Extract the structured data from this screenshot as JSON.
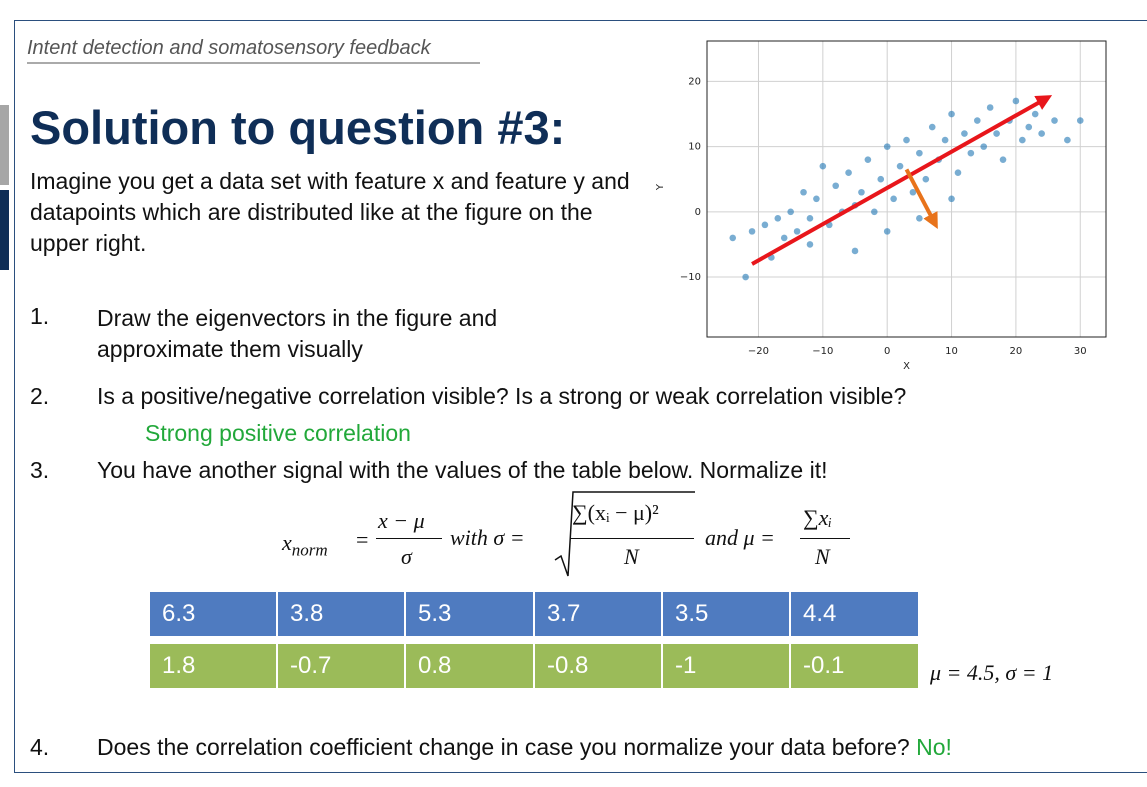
{
  "header": {
    "topic": "Intent detection and somatosensory feedback"
  },
  "title": "Solution to question #3:",
  "intro": "Imagine you get a data set with feature x and feature y and datapoints which are distributed like at the figure on the upper right.",
  "questions": [
    {
      "number": "1.",
      "text": "Draw the eigenvectors in the figure and approximate them visually"
    },
    {
      "number": "2.",
      "text": "Is a positive/negative correlation visible? Is a strong or weak correlation visible?",
      "answer": "Strong positive correlation"
    },
    {
      "number": "3.",
      "text": "You have another signal with the values of the table below. Normalize it!"
    },
    {
      "number": "4.",
      "text": "Does the correlation coefficient change in case you normalize your data before?",
      "answer": "No!"
    }
  ],
  "formula": {
    "lhs": "x",
    "lhs_sub": "norm",
    "eq": "=",
    "numerator": "x − μ",
    "denominator": "σ",
    "with": "with σ =",
    "sigma_numerator": "∑(xᵢ − μ)²",
    "sigma_denominator": "N",
    "and": "and μ =",
    "mu_numerator": "∑xᵢ",
    "mu_denominator": "N"
  },
  "table": {
    "rows": [
      [
        "6.3",
        "3.8",
        "5.3",
        "3.7",
        "3.5",
        "4.4"
      ],
      [
        "1.8",
        "-0.7",
        "0.8",
        "-0.8",
        "-1",
        "-0.1"
      ]
    ],
    "row_colors": [
      "#4f7bc0",
      "#9bbb59"
    ],
    "result": "μ = 4.5, σ = 1"
  },
  "chart_data": {
    "type": "scatter",
    "xlabel": "X",
    "ylabel": "Y",
    "color": "#1f77b4",
    "grid": true,
    "xlim": [
      -28,
      34
    ],
    "ylim": [
      -19.2,
      26.2
    ],
    "xticks": [
      {
        "value": -20,
        "label": "−20"
      },
      {
        "value": -10,
        "label": "−10"
      },
      0,
      10,
      20,
      30
    ],
    "yticks": [
      {
        "value": -10,
        "label": "−10"
      },
      0,
      10,
      20
    ],
    "x": [
      -24,
      -22,
      -21,
      -19,
      -18,
      -17,
      -16,
      -15,
      -14,
      -13,
      -12,
      -11,
      -10,
      -9,
      -8,
      -7,
      -6,
      -5,
      -4,
      -3,
      -2,
      -1,
      0,
      1,
      2,
      3,
      4,
      5,
      6,
      7,
      8,
      9,
      10,
      11,
      12,
      13,
      14,
      15,
      16,
      17,
      18,
      19,
      20,
      21,
      22,
      23,
      24,
      26,
      28,
      30,
      -12,
      -5,
      0,
      5,
      10
    ],
    "values": [
      -4,
      -10,
      -3,
      -2,
      -7,
      -1,
      -4,
      0,
      -3,
      3,
      -1,
      2,
      7,
      -2,
      4,
      0,
      6,
      1,
      3,
      8,
      0,
      5,
      10,
      2,
      7,
      11,
      3,
      9,
      5,
      13,
      8,
      11,
      15,
      6,
      12,
      9,
      14,
      10,
      16,
      12,
      8,
      14,
      17,
      11,
      13,
      15,
      12,
      14,
      11,
      14,
      -5,
      -6,
      -3,
      -1,
      2
    ],
    "arrows": [
      {
        "color": "#e8161b",
        "x": [
          -21,
          24
        ],
        "y": [
          -8,
          17
        ]
      },
      {
        "color": "#e8731b",
        "x": [
          3,
          7
        ],
        "y": [
          6.5,
          -1
        ]
      }
    ]
  }
}
